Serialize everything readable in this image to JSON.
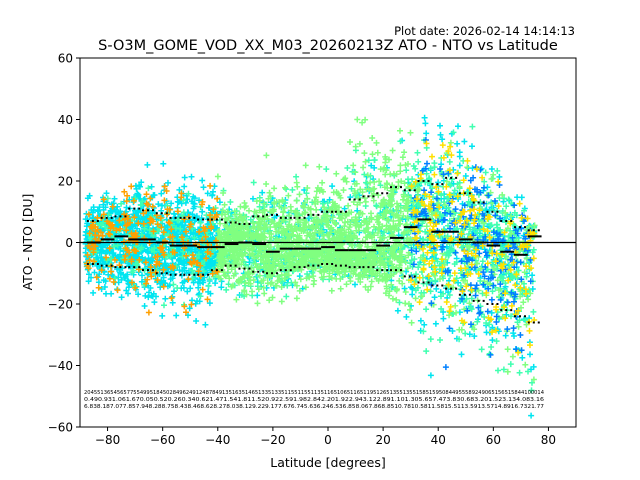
{
  "chart_data": {
    "type": "scatter",
    "plot_date": "Plot date: 2026-02-14 14:14:13",
    "title": "S-O3M_GOME_VOD_XX_M03_20260213Z ATO - NTO vs Latitude",
    "xlabel": "Latitude [degrees]",
    "ylabel": "ATO - NTO [DU]",
    "xlim": [
      -90,
      90
    ],
    "ylim": [
      -60,
      60
    ],
    "xticks": [
      -80,
      -60,
      -40,
      -20,
      0,
      20,
      40,
      60,
      80
    ],
    "yticks": [
      -60,
      -40,
      -20,
      0,
      20,
      40,
      60
    ],
    "xtick_labels": [
      "−80",
      "−60",
      "−40",
      "−20",
      "0",
      "20",
      "40",
      "60",
      "80"
    ],
    "ytick_labels": [
      "−60",
      "−40",
      "−20",
      "0",
      "20",
      "40",
      "60"
    ],
    "grid": false,
    "legend": "none",
    "marker": "+",
    "colormap": [
      "#0000ff",
      "#0080ff",
      "#00e5f0",
      "#40ffb0",
      "#80ff80",
      "#c0ff40",
      "#ffe000",
      "#ffa000"
    ],
    "zero_line": 0,
    "bins": {
      "lat": [
        -85,
        -80,
        -75,
        -70,
        -65,
        -60,
        -55,
        -50,
        -45,
        -40,
        -35,
        -30,
        -25,
        -20,
        -15,
        -10,
        -5,
        0,
        5,
        10,
        15,
        20,
        25,
        30,
        35,
        40,
        45,
        50,
        55,
        60,
        65,
        70,
        75
      ],
      "mean": [
        0,
        1,
        2,
        1,
        1,
        0,
        -1,
        -1,
        -1.5,
        -1.5,
        -0.5,
        0,
        -0.5,
        -3,
        -2,
        -2,
        -2,
        -1.5,
        -2.5,
        -2.5,
        -2.5,
        -1,
        1.5,
        5,
        7.5,
        3.5,
        3.5,
        1,
        0,
        -1,
        -3,
        -4,
        2
      ],
      "upper": [
        7,
        8,
        8.5,
        11,
        10.5,
        9.5,
        8,
        8,
        7.5,
        7.5,
        6.5,
        6,
        8.5,
        9,
        8,
        8,
        9,
        10,
        10,
        14,
        15,
        16,
        18,
        17,
        20,
        19,
        21,
        16,
        13,
        10,
        7,
        5,
        4
      ],
      "lower": [
        -7,
        -7.5,
        -8,
        -8,
        -9,
        -10,
        -10.5,
        -10.5,
        -10.5,
        -9,
        -7.5,
        -8.5,
        -9.5,
        -10,
        -9,
        -8,
        -7.5,
        -7,
        -7.5,
        -8,
        -8,
        -9,
        -9,
        -11,
        -13,
        -14,
        -15,
        -17,
        -19,
        -20,
        -22,
        -24,
        -26
      ]
    },
    "count_row_1": "2045|5136|5456|5775|5499|5184|5028|4962|4912|4878|4913|5163|5146|5133|5133|5115|5115|5113|5116|5106|5116|5119|5126|5135|5135|5158|5159|5084|4955|5892|4906|5156|5158|4410|0014",
    "count_row_2": "0.49|0.93|1.06|1.67|0.05|0.52|0.26|0.34|0.62|1.47|1.54|1.81|1.52|0.92|2.59|1.98|2.84|2.20|1.92|2.94|3.12|2.89|1.10|1.30|5.65|7.47|3.83|0.68|3.20|1.52|3.13|4.08|3.16",
    "count_row_3": "6.83|8.18|7.07|7.85|7.94|8.28|8.75|8.43|8.46|8.62|8.27|8.03|8.12|9.22|9.17|7.67|6.74|5.63|6.24|6.53|6.85|8.06|7.86|8.85|10.78|10.58|11.58|15.51|13.59|13.57|14.89|16.73|21.77"
  }
}
